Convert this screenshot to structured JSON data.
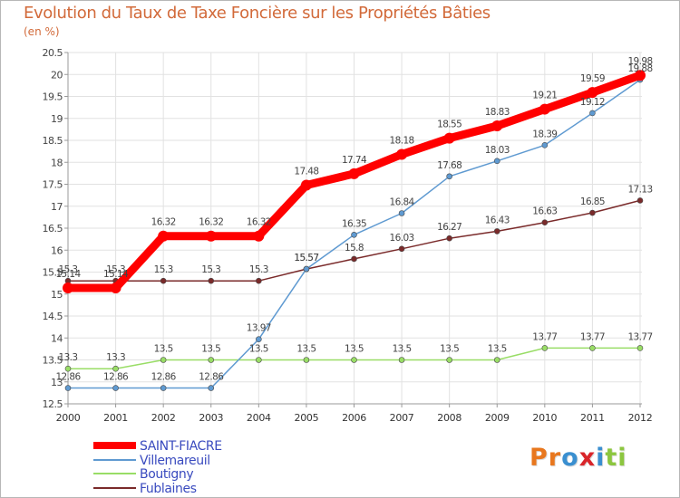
{
  "title": "Evolution du Taux de Taxe Foncière sur les Propriétés Bâties",
  "unit_label": "(en %)",
  "logo": {
    "text": "Proxiti",
    "letters": [
      {
        "ch": "P",
        "color": "#e8771e"
      },
      {
        "ch": "r",
        "color": "#e8771e"
      },
      {
        "ch": "o",
        "color": "#3a8fd0"
      },
      {
        "ch": "x",
        "color": "#d9252a"
      },
      {
        "ch": "i",
        "color": "#3a8fd0"
      },
      {
        "ch": "t",
        "color": "#8cc63f"
      },
      {
        "ch": "i",
        "color": "#8cc63f"
      }
    ]
  },
  "chart_data": {
    "type": "line",
    "title": "Evolution du Taux de Taxe Foncière sur les Propriétés Bâties",
    "ylabel": "(en %)",
    "xlabel": "",
    "categories": [
      "2000",
      "2001",
      "2002",
      "2003",
      "2004",
      "2005",
      "2006",
      "2007",
      "2008",
      "2009",
      "2010",
      "2011",
      "2012"
    ],
    "ylim": [
      12.5,
      20.5
    ],
    "yticks": [
      "12.5",
      "13",
      "13.5",
      "14",
      "14.5",
      "15",
      "15.5",
      "16",
      "16.5",
      "17",
      "17.5",
      "18",
      "18.5",
      "19",
      "19.5",
      "20",
      "20.5"
    ],
    "grid": true,
    "legend_position": "bottom-left",
    "series": [
      {
        "name": "SAINT-FIACRE",
        "color": "#ff0000",
        "values": [
          15.14,
          15.14,
          16.32,
          16.32,
          16.32,
          17.48,
          17.74,
          18.18,
          18.55,
          18.83,
          19.21,
          19.59,
          19.98
        ],
        "labels": [
          "15.14",
          "15.14",
          "16.32",
          "16.32",
          "16.32",
          "17.48",
          "17.74",
          "18.18",
          "18.55",
          "18.83",
          "19.21",
          "19.59",
          "19.98"
        ]
      },
      {
        "name": "Villemareuil",
        "color": "#5f9ad1",
        "values": [
          12.86,
          12.86,
          12.86,
          12.86,
          13.97,
          15.57,
          16.35,
          16.84,
          17.68,
          18.03,
          18.39,
          19.12,
          19.88
        ],
        "labels": [
          "12.86",
          "12.86",
          "12.86",
          "12.86",
          "13.97",
          "15.57",
          "16.35",
          "16.84",
          "17.68",
          "18.03",
          "18.39",
          "19.12",
          "19.88"
        ]
      },
      {
        "name": "Boutigny",
        "color": "#99dd66",
        "values": [
          13.3,
          13.3,
          13.5,
          13.5,
          13.5,
          13.5,
          13.5,
          13.5,
          13.5,
          13.5,
          13.77,
          13.77,
          13.77
        ],
        "labels": [
          "13.3",
          "13.3",
          "13.5",
          "13.5",
          "13.5",
          "13.5",
          "13.5",
          "13.5",
          "13.5",
          "13.5",
          "13.77",
          "13.77",
          "13.77"
        ]
      },
      {
        "name": "Fublaines",
        "color": "#7a2a2a",
        "values": [
          15.3,
          15.3,
          15.3,
          15.3,
          15.3,
          15.57,
          15.8,
          16.03,
          16.27,
          16.43,
          16.63,
          16.85,
          17.13
        ],
        "labels": [
          "15.3",
          "15.3",
          "15.3",
          "15.3",
          "15.3",
          "15.57",
          "15.8",
          "16.03",
          "16.27",
          "16.43",
          "16.63",
          "16.85",
          "17.13"
        ]
      }
    ]
  }
}
